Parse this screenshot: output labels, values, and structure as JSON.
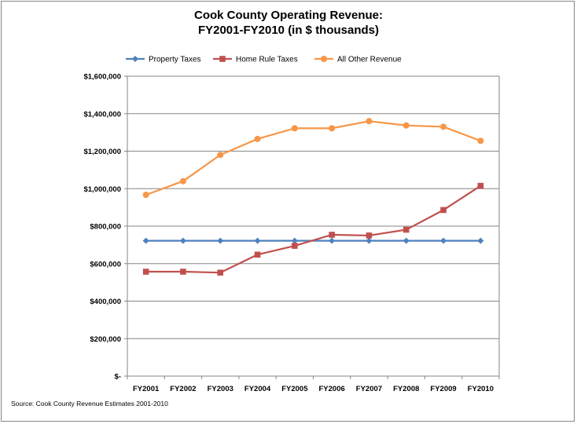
{
  "chart_data": {
    "type": "line",
    "title": [
      "Cook County Operating Revenue:",
      "FY2001-FY2010 (in $ thousands)"
    ],
    "categories": [
      "FY2001",
      "FY2002",
      "FY2003",
      "FY2004",
      "FY2005",
      "FY2006",
      "FY2007",
      "FY2008",
      "FY2009",
      "FY2010"
    ],
    "ylim": [
      0,
      1600000
    ],
    "yticks": [
      {
        "value": 0,
        "label": "$-"
      },
      {
        "value": 200000,
        "label": "$200,000"
      },
      {
        "value": 400000,
        "label": "$400,000"
      },
      {
        "value": 600000,
        "label": "$600,000"
      },
      {
        "value": 800000,
        "label": "$800,000"
      },
      {
        "value": 1000000,
        "label": "$1,000,000"
      },
      {
        "value": 1200000,
        "label": "$1,200,000"
      },
      {
        "value": 1400000,
        "label": "$1,400,000"
      },
      {
        "value": 1600000,
        "label": "$1,600,000"
      }
    ],
    "grid": true,
    "legend_position": "top",
    "series": [
      {
        "name": "Property Taxes",
        "color": "#4F81BD",
        "marker": "diamond",
        "values": [
          722000,
          722000,
          722000,
          722000,
          722000,
          722000,
          722000,
          722000,
          722000,
          722000
        ]
      },
      {
        "name": "Home Rule Taxes",
        "color": "#C0504D",
        "marker": "square",
        "values": [
          557000,
          557000,
          552000,
          648000,
          695000,
          754000,
          750000,
          781000,
          886000,
          1015000
        ]
      },
      {
        "name": "All Other Revenue",
        "color": "#F79646",
        "marker": "circle",
        "values": [
          967000,
          1040000,
          1180000,
          1265000,
          1322000,
          1322000,
          1360000,
          1337000,
          1330000,
          1255000
        ]
      }
    ],
    "source": "Source:  Cook County Revenue Estimates 2001-2010"
  }
}
